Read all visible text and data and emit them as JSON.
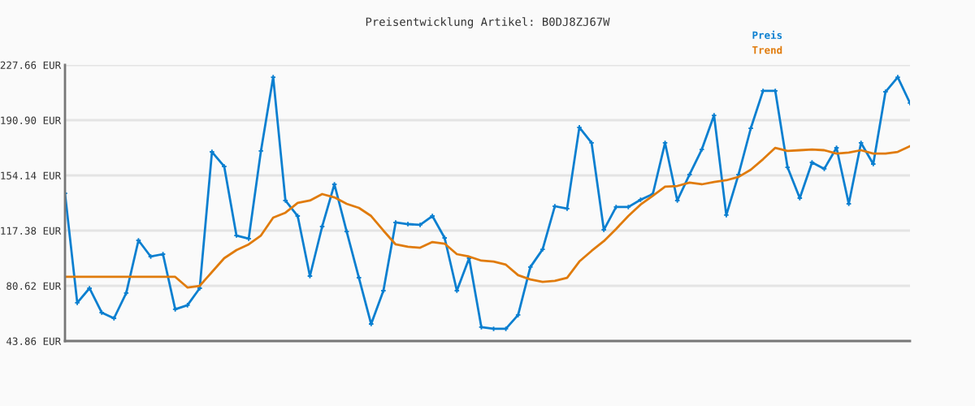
{
  "chart_data": {
    "type": "line",
    "title": "Preisentwicklung Artikel: B0DJ8ZJ67W",
    "categories": [
      null,
      null,
      null,
      null,
      null,
      null,
      null,
      null,
      null,
      null,
      null,
      null,
      null,
      null,
      null,
      null,
      null,
      null,
      null,
      null,
      null,
      null,
      null,
      null,
      null,
      null,
      null,
      null,
      null,
      null,
      null,
      null,
      null,
      null,
      null,
      null,
      null,
      null,
      null,
      null,
      null,
      null,
      null,
      null,
      null,
      null,
      null,
      null,
      null,
      null,
      null,
      null,
      null,
      null,
      null,
      null,
      null,
      null,
      null,
      null,
      null,
      null,
      null,
      null,
      null,
      null,
      null,
      null,
      null,
      null
    ],
    "series": [
      {
        "name": "Preis",
        "color": "#0a7fd0",
        "marker": "cross",
        "values": [
          142.2,
          69.3,
          79.0,
          62.8,
          59.0,
          75.8,
          110.9,
          100.1,
          101.7,
          65.0,
          67.7,
          79.0,
          169.8,
          160.1,
          114.1,
          112.0,
          170.4,
          219.5,
          137.4,
          127.1,
          87.1,
          120.1,
          148.2,
          116.8,
          86.0,
          55.2,
          77.4,
          122.8,
          121.7,
          121.2,
          127.1,
          112.5,
          77.4,
          99.0,
          53.1,
          52.0,
          52.0,
          61.2,
          93.1,
          104.9,
          133.6,
          132.0,
          186.1,
          175.8,
          117.9,
          133.1,
          133.1,
          137.9,
          141.7,
          175.8,
          137.4,
          154.7,
          171.4,
          194.1,
          127.7,
          154.7,
          185.5,
          210.4,
          210.4,
          159.5,
          139.0,
          162.8,
          158.5,
          172.5,
          135.2,
          175.8,
          161.7,
          209.8,
          219.5,
          202.3
        ]
      },
      {
        "name": "Trend",
        "color": "#e07b0c",
        "marker": "none",
        "values": [
          86.6,
          86.6,
          86.6,
          86.6,
          86.6,
          86.6,
          86.6,
          86.6,
          86.6,
          86.6,
          79.5,
          80.6,
          89.8,
          99.0,
          104.4,
          108.2,
          114.1,
          126.0,
          129.3,
          135.8,
          137.4,
          141.7,
          139.5,
          135.2,
          132.5,
          127.1,
          117.4,
          108.2,
          106.6,
          106.0,
          109.8,
          108.7,
          101.7,
          100.1,
          97.4,
          96.8,
          94.7,
          87.7,
          84.9,
          83.3,
          83.9,
          86.0,
          96.8,
          103.9,
          110.4,
          118.5,
          127.1,
          134.7,
          140.6,
          146.6,
          147.1,
          149.3,
          148.2,
          149.8,
          150.9,
          153.1,
          157.9,
          164.9,
          172.5,
          170.4,
          170.9,
          171.4,
          170.9,
          168.7,
          169.3,
          170.9,
          168.7,
          168.7,
          169.8,
          173.6
        ]
      }
    ],
    "ylim": [
      43.86,
      227.66
    ],
    "yticks": [
      {
        "value": 43.86,
        "label": "43.86 EUR"
      },
      {
        "value": 80.62,
        "label": "80.62 EUR"
      },
      {
        "value": 117.38,
        "label": "117.38 EUR"
      },
      {
        "value": 154.14,
        "label": "154.14 EUR"
      },
      {
        "value": 190.9,
        "label": "190.90 EUR"
      },
      {
        "value": 227.66,
        "label": "227.66 EUR"
      }
    ],
    "grid": "y",
    "legend": "top right",
    "line_style": "solid"
  }
}
